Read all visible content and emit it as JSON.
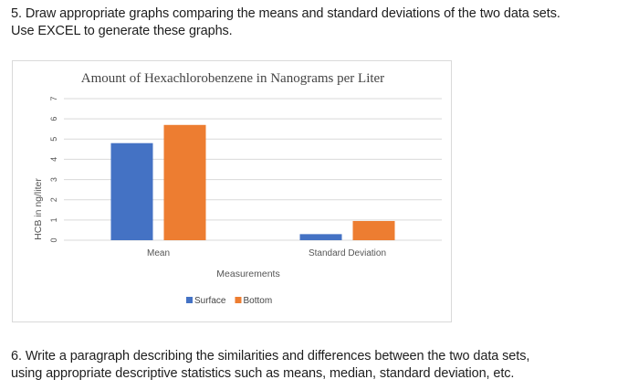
{
  "question5": {
    "line1": "5. Draw appropriate graphs comparing the means and standard deviations of the two data sets.",
    "line2": "Use EXCEL to generate these graphs."
  },
  "question6": {
    "line1": "6. Write a paragraph describing the similarities and differences between the two data sets,",
    "line2": "using appropriate descriptive statistics such as means, median, standard deviation, etc."
  },
  "chart_data": {
    "type": "bar",
    "title": "Amount of Hexachlorobenzene in Nanograms per Liter",
    "xlabel": "Measurements",
    "ylabel": "HCB in ng/liter",
    "categories": [
      "Mean",
      "Standard Deviation"
    ],
    "series": [
      {
        "name": "Surface",
        "values": [
          4.8,
          0.3
        ],
        "color": "#4472c4"
      },
      {
        "name": "Bottom",
        "values": [
          5.7,
          0.95
        ],
        "color": "#ed7d31"
      }
    ],
    "ylim": [
      0,
      7
    ],
    "yticks": [
      "0",
      "1",
      "2",
      "3",
      "4",
      "5",
      "6",
      "7"
    ],
    "grid": true,
    "legend_position": "bottom"
  }
}
